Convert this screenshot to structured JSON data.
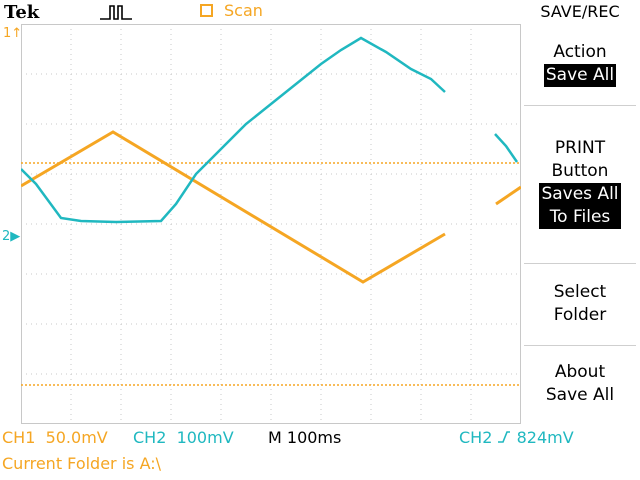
{
  "header": {
    "brand": "Tek",
    "acquire_mode": "Scan",
    "menu_title": "SAVE/REC"
  },
  "menu": {
    "action": {
      "label": "Action",
      "value": "Save All"
    },
    "print_button": {
      "label_line1": "PRINT",
      "label_line2": "Button",
      "value_line1": "Saves All",
      "value_line2": "To Files"
    },
    "select_folder": {
      "line1": "Select",
      "line2": "Folder"
    },
    "about": {
      "line1": "About",
      "line2": "Save All"
    }
  },
  "markers": {
    "ch1": "1",
    "ch2": "2"
  },
  "readouts": {
    "ch1": {
      "label": "CH1",
      "scale": "50.0mV"
    },
    "ch2": {
      "label": "CH2",
      "scale": "100mV"
    },
    "timebase": "M 100ms",
    "trigger": {
      "source": "CH2",
      "slope_icon": "rising-edge-icon",
      "level": "824mV"
    }
  },
  "status": {
    "current_folder": "Current Folder is A:\\"
  },
  "colors": {
    "ch1": "#f5a623",
    "ch2": "#20b8c0",
    "grid": "#c8c8c8"
  }
}
